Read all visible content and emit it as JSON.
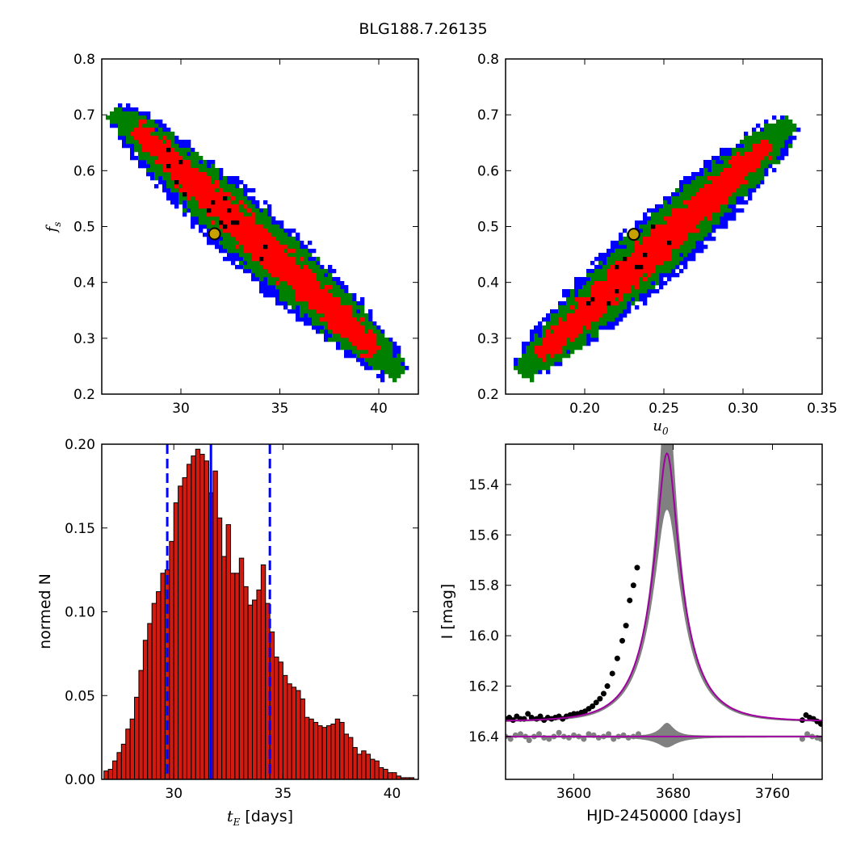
{
  "figure": {
    "title": "BLG188.7.26135"
  },
  "colors": {
    "level1": "#ff0000",
    "level2": "#008000",
    "level3": "#0000ff",
    "dense": "#000000",
    "best_fit_fill": "#c8a000",
    "hist_bar": "#d21a10",
    "interval_line": "#0000ff",
    "model_curve": "#a000a0",
    "model_band": "#808080",
    "data_points": "#000000",
    "residual_points": "#808080"
  },
  "chart_data": [
    {
      "type": "heatmap",
      "panel": "tE-fs",
      "xlabel": "",
      "ylabel_math": "f",
      "ylabel_sub": "s",
      "xlim": [
        26,
        42
      ],
      "ylim": [
        0.2,
        0.8
      ],
      "xticks": [
        "30",
        "35",
        "40"
      ],
      "yticks": [
        "0.2",
        "0.3",
        "0.4",
        "0.5",
        "0.6",
        "0.7",
        "0.8"
      ],
      "ridge": {
        "x_start": 26.8,
        "y_start": 0.705,
        "x_end": 41.0,
        "y_end": 0.24
      },
      "best_fit": {
        "x": 31.7,
        "y": 0.487
      }
    },
    {
      "type": "heatmap",
      "panel": "u0-fs",
      "xlabel_math": "u",
      "xlabel_sub": "0",
      "ylabel": "",
      "xlim": [
        0.15,
        0.35
      ],
      "ylim": [
        0.2,
        0.8
      ],
      "xticks": [
        "0.20",
        "0.25",
        "0.30",
        "0.35"
      ],
      "yticks": [
        "0.2",
        "0.3",
        "0.4",
        "0.5",
        "0.6",
        "0.7",
        "0.8"
      ],
      "ridge": {
        "x_start": 0.16,
        "y_start": 0.24,
        "x_end": 0.33,
        "y_end": 0.685
      },
      "best_fit": {
        "x": 0.231,
        "y": 0.486
      }
    },
    {
      "type": "bar",
      "panel": "tE-histogram",
      "xlabel_math": "t",
      "xlabel_sub": "E",
      "xlabel_text": " [days]",
      "ylabel": "normed N",
      "xlim": [
        26.7,
        41.2
      ],
      "ylim": [
        0,
        0.2
      ],
      "xticks": [
        "30",
        "35",
        "40"
      ],
      "yticks": [
        "0.00",
        "0.05",
        "0.10",
        "0.15",
        "0.20"
      ],
      "bin_start": 26.8,
      "bin_width": 0.2,
      "values": [
        0.005,
        0.006,
        0.011,
        0.016,
        0.021,
        0.03,
        0.036,
        0.049,
        0.065,
        0.083,
        0.093,
        0.105,
        0.112,
        0.123,
        0.125,
        0.142,
        0.165,
        0.175,
        0.18,
        0.188,
        0.193,
        0.197,
        0.194,
        0.19,
        0.171,
        0.184,
        0.156,
        0.133,
        0.152,
        0.123,
        0.123,
        0.132,
        0.115,
        0.104,
        0.107,
        0.113,
        0.128,
        0.105,
        0.088,
        0.073,
        0.07,
        0.062,
        0.057,
        0.055,
        0.053,
        0.048,
        0.037,
        0.036,
        0.034,
        0.032,
        0.031,
        0.032,
        0.033,
        0.036,
        0.034,
        0.027,
        0.025,
        0.019,
        0.015,
        0.017,
        0.015,
        0.012,
        0.011,
        0.007,
        0.006,
        0.004,
        0.004,
        0.002,
        0.001,
        0.001,
        0.001
      ],
      "vlines": {
        "median": 31.7,
        "lower": 29.7,
        "upper": 34.4
      }
    },
    {
      "type": "line",
      "panel": "lightcurve",
      "xlabel": "HJD-2450000 [days]",
      "ylabel": "I [mag]",
      "xlim": [
        3545,
        3800
      ],
      "ylim": [
        16.57,
        15.24
      ],
      "y_inverted": true,
      "xticks": [
        3600,
        3680,
        3760
      ],
      "yticks": [
        "15.4",
        "15.6",
        "15.8",
        "16.0",
        "16.2",
        "16.4"
      ],
      "model": {
        "t0": 3675,
        "tE": 31.7,
        "u0": 0.231,
        "fs": 0.487,
        "baseline": 16.34,
        "residual_offset": 16.4
      },
      "data_points": [
        [
          3545,
          16.33
        ],
        [
          3548,
          16.325
        ],
        [
          3551,
          16.335
        ],
        [
          3554,
          16.32
        ],
        [
          3557,
          16.33
        ],
        [
          3560,
          16.33
        ],
        [
          3563,
          16.31
        ],
        [
          3566,
          16.325
        ],
        [
          3570,
          16.33
        ],
        [
          3573,
          16.32
        ],
        [
          3576,
          16.335
        ],
        [
          3579,
          16.325
        ],
        [
          3582,
          16.33
        ],
        [
          3585,
          16.325
        ],
        [
          3588,
          16.32
        ],
        [
          3591,
          16.33
        ],
        [
          3594,
          16.32
        ],
        [
          3597,
          16.315
        ],
        [
          3600,
          16.31
        ],
        [
          3603,
          16.31
        ],
        [
          3606,
          16.305
        ],
        [
          3609,
          16.3
        ],
        [
          3612,
          16.29
        ],
        [
          3615,
          16.28
        ],
        [
          3618,
          16.265
        ],
        [
          3621,
          16.25
        ],
        [
          3624,
          16.23
        ],
        [
          3627,
          16.2
        ],
        [
          3631,
          16.15
        ],
        [
          3635,
          16.09
        ],
        [
          3639,
          16.02
        ],
        [
          3642,
          15.96
        ],
        [
          3645,
          15.86
        ],
        [
          3648,
          15.8
        ],
        [
          3651,
          15.73
        ],
        [
          3784,
          16.335
        ],
        [
          3787,
          16.315
        ],
        [
          3790,
          16.325
        ],
        [
          3793,
          16.33
        ],
        [
          3796,
          16.34
        ],
        [
          3799,
          16.35
        ]
      ],
      "residual_points": [
        [
          3545,
          16.4
        ],
        [
          3549,
          16.41
        ],
        [
          3553,
          16.395
        ],
        [
          3557,
          16.39
        ],
        [
          3561,
          16.4
        ],
        [
          3564,
          16.415
        ],
        [
          3568,
          16.4
        ],
        [
          3572,
          16.39
        ],
        [
          3576,
          16.405
        ],
        [
          3580,
          16.41
        ],
        [
          3584,
          16.4
        ],
        [
          3588,
          16.385
        ],
        [
          3592,
          16.4
        ],
        [
          3596,
          16.405
        ],
        [
          3600,
          16.395
        ],
        [
          3604,
          16.4
        ],
        [
          3608,
          16.41
        ],
        [
          3612,
          16.39
        ],
        [
          3616,
          16.395
        ],
        [
          3620,
          16.405
        ],
        [
          3624,
          16.4
        ],
        [
          3628,
          16.39
        ],
        [
          3632,
          16.41
        ],
        [
          3636,
          16.4
        ],
        [
          3640,
          16.395
        ],
        [
          3644,
          16.405
        ],
        [
          3648,
          16.4
        ],
        [
          3652,
          16.39
        ],
        [
          3784,
          16.41
        ],
        [
          3788,
          16.39
        ],
        [
          3792,
          16.4
        ],
        [
          3796,
          16.405
        ],
        [
          3799,
          16.41
        ]
      ]
    }
  ]
}
